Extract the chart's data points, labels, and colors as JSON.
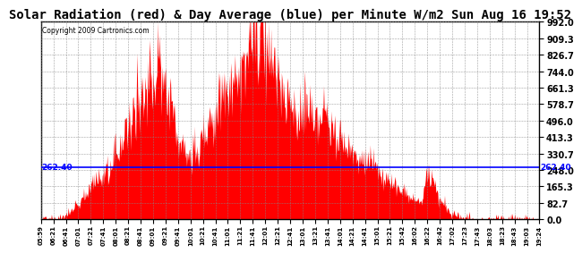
{
  "title": "Solar Radiation (red) & Day Average (blue) per Minute W/m2 Sun Aug 16 19:52",
  "copyright": "Copyright 2009 Cartronics.com",
  "y_max": 992.0,
  "y_min": 0.0,
  "y_ticks": [
    0.0,
    82.7,
    165.3,
    248.0,
    330.7,
    413.3,
    496.0,
    578.7,
    661.3,
    744.0,
    826.7,
    909.3,
    992.0
  ],
  "avg_line_y": 262.4,
  "avg_label": "262.40",
  "fill_color": "#FF0000",
  "line_color": "#0000FF",
  "bg_color": "#FFFFFF",
  "grid_color": "#888888",
  "title_fontsize": 10,
  "x_tick_labels": [
    "05:59",
    "06:21",
    "06:41",
    "07:01",
    "07:21",
    "07:41",
    "08:01",
    "08:21",
    "08:41",
    "09:01",
    "09:21",
    "09:41",
    "10:01",
    "10:21",
    "10:41",
    "11:01",
    "11:21",
    "11:41",
    "12:01",
    "12:21",
    "12:41",
    "13:01",
    "13:21",
    "13:41",
    "14:01",
    "14:21",
    "14:41",
    "15:01",
    "15:21",
    "15:42",
    "16:02",
    "16:22",
    "16:42",
    "17:02",
    "17:23",
    "17:43",
    "18:03",
    "18:23",
    "18:43",
    "19:03",
    "19:24"
  ],
  "profile_keypoints": [
    [
      0.0,
      0
    ],
    [
      0.03,
      0
    ],
    [
      0.045,
      15
    ],
    [
      0.06,
      40
    ],
    [
      0.075,
      80
    ],
    [
      0.09,
      140
    ],
    [
      0.11,
      200
    ],
    [
      0.13,
      250
    ],
    [
      0.15,
      330
    ],
    [
      0.165,
      400
    ],
    [
      0.18,
      500
    ],
    [
      0.195,
      580
    ],
    [
      0.21,
      640
    ],
    [
      0.225,
      680
    ],
    [
      0.235,
      826
    ],
    [
      0.245,
      700
    ],
    [
      0.255,
      620
    ],
    [
      0.265,
      580
    ],
    [
      0.275,
      450
    ],
    [
      0.285,
      380
    ],
    [
      0.295,
      320
    ],
    [
      0.31,
      350
    ],
    [
      0.325,
      420
    ],
    [
      0.34,
      480
    ],
    [
      0.355,
      560
    ],
    [
      0.37,
      620
    ],
    [
      0.385,
      680
    ],
    [
      0.4,
      750
    ],
    [
      0.41,
      820
    ],
    [
      0.418,
      880
    ],
    [
      0.425,
      950
    ],
    [
      0.43,
      992
    ],
    [
      0.435,
      970
    ],
    [
      0.44,
      910
    ],
    [
      0.445,
      860
    ],
    [
      0.45,
      800
    ],
    [
      0.458,
      820
    ],
    [
      0.465,
      770
    ],
    [
      0.47,
      700
    ],
    [
      0.478,
      661
    ],
    [
      0.485,
      620
    ],
    [
      0.495,
      580
    ],
    [
      0.505,
      540
    ],
    [
      0.515,
      500
    ],
    [
      0.525,
      520
    ],
    [
      0.535,
      560
    ],
    [
      0.545,
      496
    ],
    [
      0.555,
      480
    ],
    [
      0.565,
      530
    ],
    [
      0.575,
      496
    ],
    [
      0.585,
      450
    ],
    [
      0.595,
      420
    ],
    [
      0.605,
      400
    ],
    [
      0.615,
      380
    ],
    [
      0.625,
      350
    ],
    [
      0.635,
      330
    ],
    [
      0.645,
      310
    ],
    [
      0.655,
      290
    ],
    [
      0.665,
      270
    ],
    [
      0.675,
      248
    ],
    [
      0.685,
      220
    ],
    [
      0.695,
      200
    ],
    [
      0.705,
      180
    ],
    [
      0.715,
      160
    ],
    [
      0.725,
      140
    ],
    [
      0.735,
      120
    ],
    [
      0.745,
      100
    ],
    [
      0.755,
      90
    ],
    [
      0.765,
      80
    ],
    [
      0.775,
      248
    ],
    [
      0.785,
      200
    ],
    [
      0.795,
      130
    ],
    [
      0.805,
      80
    ],
    [
      0.815,
      50
    ],
    [
      0.825,
      30
    ],
    [
      0.835,
      20
    ],
    [
      0.845,
      10
    ],
    [
      0.855,
      5
    ],
    [
      0.865,
      0
    ],
    [
      1.0,
      0
    ]
  ]
}
